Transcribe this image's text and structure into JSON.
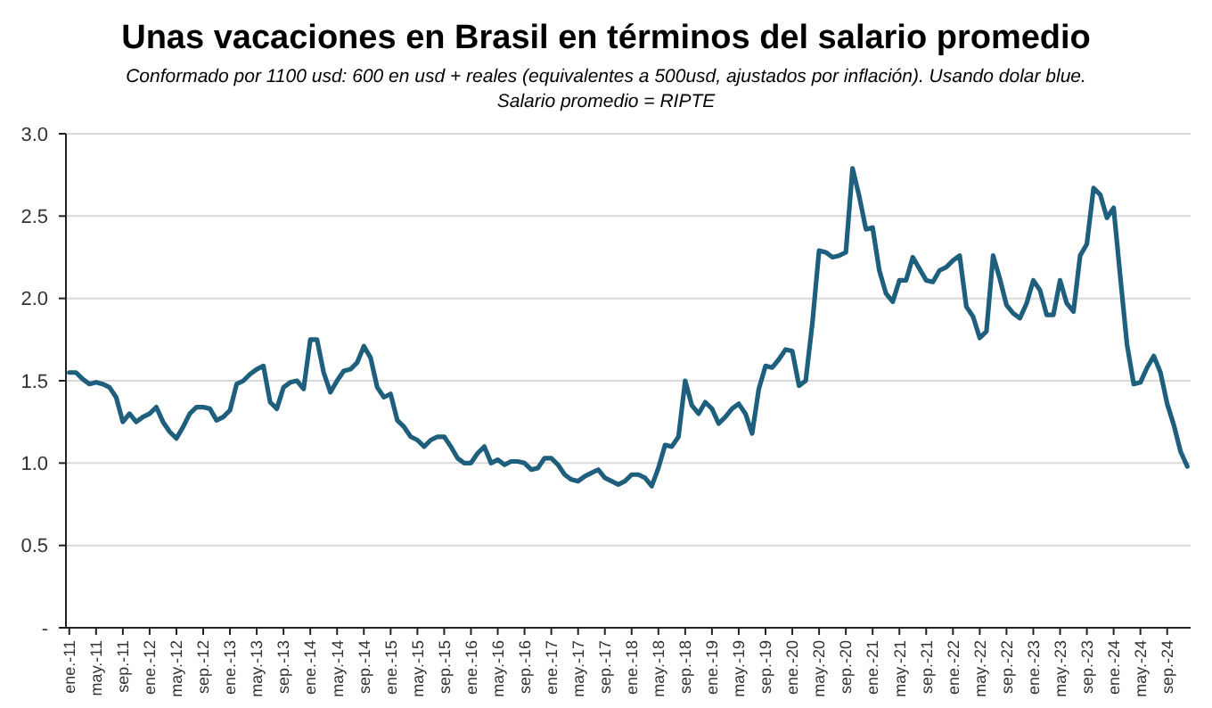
{
  "chart_data": {
    "type": "line",
    "title": "Unas vacaciones en Brasil en términos del salario promedio",
    "subtitle": "Conformado por 1100 usd: 600 en usd + reales (equivalentes a 500usd, ajustados por inflación). Usando dolar blue.\nSalario promedio = RIPTE",
    "categories": [
      "ene.-11",
      null,
      null,
      null,
      "may.-11",
      null,
      null,
      null,
      "sep.-11",
      null,
      null,
      null,
      "ene.-12",
      null,
      null,
      null,
      "may.-12",
      null,
      null,
      null,
      "sep.-12",
      null,
      null,
      null,
      "ene.-13",
      null,
      null,
      null,
      "may.-13",
      null,
      null,
      null,
      "sep.-13",
      null,
      null,
      null,
      "ene.-14",
      null,
      null,
      null,
      "may.-14",
      null,
      null,
      null,
      "sep.-14",
      null,
      null,
      null,
      "ene.-15",
      null,
      null,
      null,
      "may.-15",
      null,
      null,
      null,
      "sep.-15",
      null,
      null,
      null,
      "ene.-16",
      null,
      null,
      null,
      "may.-16",
      null,
      null,
      null,
      "sep.-16",
      null,
      null,
      null,
      "ene.-17",
      null,
      null,
      null,
      "may.-17",
      null,
      null,
      null,
      "sep.-17",
      null,
      null,
      null,
      "ene.-18",
      null,
      null,
      null,
      "may.-18",
      null,
      null,
      null,
      "sep.-18",
      null,
      null,
      null,
      "ene.-19",
      null,
      null,
      null,
      "may.-19",
      null,
      null,
      null,
      "sep.-19",
      null,
      null,
      null,
      "ene.-20",
      null,
      null,
      null,
      "may.-20",
      null,
      null,
      null,
      "sep.-20",
      null,
      null,
      null,
      "ene.-21",
      null,
      null,
      null,
      "may.-21",
      null,
      null,
      null,
      "sep.-21",
      null,
      null,
      null,
      "ene.-22",
      null,
      null,
      null,
      "may.-22",
      null,
      null,
      null,
      "sep.-22",
      null,
      null,
      null,
      "ene.-23",
      null,
      null,
      null,
      "may.-23",
      null,
      null,
      null,
      "sep.-23",
      null,
      null,
      null,
      "ene.-24",
      null,
      null,
      null,
      "may.-24",
      null,
      null,
      null,
      "sep.-24",
      null,
      null,
      null
    ],
    "series": [
      {
        "color": "#1d5f7c",
        "values": [
          1.55,
          1.55,
          1.51,
          1.48,
          1.49,
          1.48,
          1.46,
          1.4,
          1.25,
          1.3,
          1.25,
          1.28,
          1.3,
          1.34,
          1.25,
          1.19,
          1.15,
          1.22,
          1.3,
          1.34,
          1.34,
          1.33,
          1.26,
          1.28,
          1.32,
          1.48,
          1.5,
          1.54,
          1.57,
          1.59,
          1.37,
          1.33,
          1.46,
          1.49,
          1.5,
          1.45,
          1.75,
          1.75,
          1.55,
          1.43,
          1.5,
          1.56,
          1.57,
          1.61,
          1.71,
          1.64,
          1.46,
          1.4,
          1.42,
          1.26,
          1.22,
          1.16,
          1.14,
          1.1,
          1.14,
          1.16,
          1.16,
          1.1,
          1.03,
          1.0,
          1.0,
          1.06,
          1.1,
          1.0,
          1.02,
          0.99,
          1.01,
          1.01,
          1.0,
          0.96,
          0.97,
          1.03,
          1.03,
          0.99,
          0.93,
          0.9,
          0.89,
          0.92,
          0.94,
          0.96,
          0.91,
          0.89,
          0.87,
          0.89,
          0.93,
          0.93,
          0.91,
          0.86,
          0.97,
          1.11,
          1.1,
          1.16,
          1.5,
          1.35,
          1.3,
          1.37,
          1.33,
          1.24,
          1.28,
          1.33,
          1.36,
          1.3,
          1.18,
          1.45,
          1.59,
          1.58,
          1.63,
          1.69,
          1.68,
          1.47,
          1.5,
          1.85,
          2.29,
          2.28,
          2.25,
          2.26,
          2.28,
          2.79,
          2.62,
          2.42,
          2.43,
          2.17,
          2.03,
          1.98,
          2.11,
          2.11,
          2.25,
          2.18,
          2.11,
          2.1,
          2.17,
          2.19,
          2.23,
          2.26,
          1.95,
          1.89,
          1.76,
          1.8,
          2.26,
          2.12,
          1.96,
          1.91,
          1.88,
          1.97,
          2.11,
          2.05,
          1.9,
          1.9,
          2.11,
          1.97,
          1.92,
          2.26,
          2.33,
          2.67,
          2.63,
          2.49,
          2.55,
          2.13,
          1.72,
          1.48,
          1.49,
          1.58,
          1.65,
          1.55,
          1.36,
          1.23,
          1.07,
          0.98
        ]
      }
    ],
    "ylim": [
      0,
      3
    ],
    "yticks": [
      {
        "value": 0,
        "label": "-"
      },
      0.5,
      {
        "value": 1,
        "label": "1.0"
      },
      1.5,
      {
        "value": 2,
        "label": "2.0"
      },
      2.5,
      {
        "value": 3,
        "label": "3.0"
      }
    ],
    "grid": "y",
    "marker": "none",
    "line_style": "solid"
  }
}
